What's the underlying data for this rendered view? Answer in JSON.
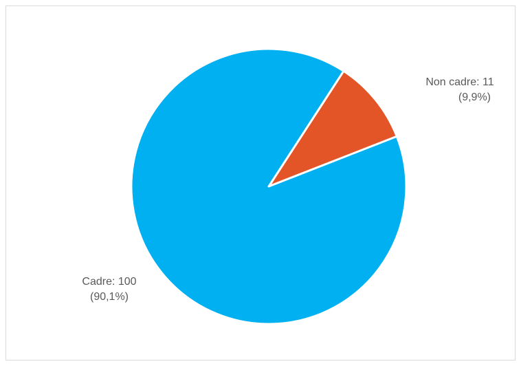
{
  "chart_data": {
    "type": "pie",
    "title": "",
    "slices": [
      {
        "label": "Cadre",
        "value": 100,
        "percent": "90,1%",
        "color": "#00B0F0"
      },
      {
        "label": "Non cadre",
        "value": 11,
        "percent": "9,9%",
        "color": "#E35427"
      }
    ],
    "labels": {
      "cadre": {
        "name": "Cadre: 100",
        "pct": "(90,1%)"
      },
      "non_cadre": {
        "name": "Non cadre: 11",
        "pct": "(9,9%)"
      }
    },
    "legend": "none",
    "slice_border_color": "#ffffff"
  }
}
